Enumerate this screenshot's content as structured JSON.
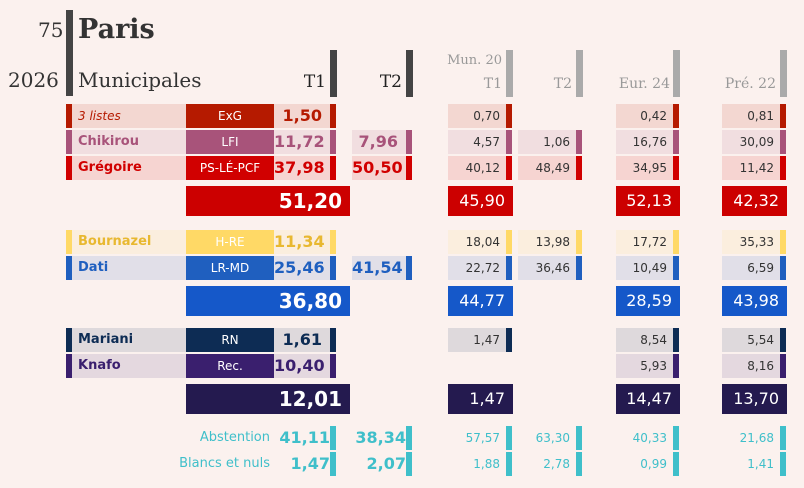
{
  "header": {
    "dept": "75",
    "city": "Paris",
    "year": "2026",
    "election": "Municipales",
    "col_t1": "T1",
    "col_t2": "T2",
    "col_mun": "Mun. 20",
    "col_mun_t1": "T1",
    "col_mun_t2": "T2",
    "col_eur": "Eur. 24",
    "col_pre": "Pré. 22"
  },
  "colors": {
    "background": "#fbf1ee",
    "left_block": "#cc0000",
    "center_block": "#1558c9",
    "right_block": "#241a4f",
    "turnout": "#3fbfca"
  },
  "chart_data": {
    "type": "table",
    "title": "Paris — Municipales 2026",
    "columns": [
      "T1",
      "T2",
      "Mun. 20 T1",
      "Mun. 20 T2",
      "Eur. 24",
      "Pré. 22"
    ],
    "rows": [
      {
        "name": "3 listes",
        "party": "ExG",
        "color": "#b51a00",
        "values": [
          "1,50",
          "",
          "0,70",
          "",
          "0,42",
          "0,81"
        ]
      },
      {
        "name": "Chikirou",
        "party": "LFI",
        "color": "#a8537a",
        "values": [
          "11,72",
          "7,96",
          "4,57",
          "1,06",
          "16,76",
          "30,09"
        ]
      },
      {
        "name": "Grégoire",
        "party": "PS-LÉ-PCF",
        "color": "#d10000",
        "values": [
          "37,98",
          "50,50",
          "40,12",
          "48,49",
          "34,95",
          "11,42"
        ]
      },
      {
        "name": "Bournazel",
        "party": "H-RE",
        "color": "#ffd966",
        "values": [
          "11,34",
          "",
          "18,04",
          "13,98",
          "17,72",
          "35,33"
        ]
      },
      {
        "name": "Dati",
        "party": "LR-MD",
        "color": "#1f5fbf",
        "values": [
          "25,46",
          "41,54",
          "22,72",
          "36,46",
          "10,49",
          "6,59"
        ]
      },
      {
        "name": "Mariani",
        "party": "RN",
        "color": "#0d2c54",
        "values": [
          "1,61",
          "",
          "1,47",
          "",
          "8,54",
          "5,54"
        ]
      },
      {
        "name": "Knafo",
        "party": "Rec.",
        "color": "#3a1f6e",
        "values": [
          "10,40",
          "",
          "",
          "",
          "5,93",
          "8,16"
        ]
      }
    ],
    "block_totals": [
      {
        "block": "left",
        "values": [
          "51,20",
          "45,90",
          "52,13",
          "42,32"
        ]
      },
      {
        "block": "center",
        "values": [
          "36,80",
          "44,77",
          "28,59",
          "43,98"
        ]
      },
      {
        "block": "right",
        "values": [
          "12,01",
          "1,47",
          "14,47",
          "13,70"
        ]
      }
    ],
    "turnout": [
      {
        "label": "Abstention",
        "values": [
          "41,11",
          "38,34",
          "57,57",
          "63,30",
          "40,33",
          "21,68"
        ]
      },
      {
        "label": "Blancs et nuls",
        "values": [
          "1,47",
          "2,07",
          "1,88",
          "2,78",
          "0,99",
          "1,41"
        ]
      }
    ]
  }
}
